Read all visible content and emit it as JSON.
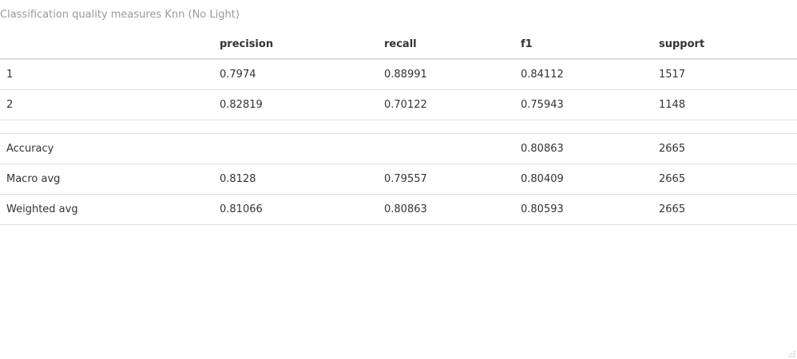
{
  "caption": "Classification quality measures Knn (No Light)",
  "table": {
    "columns": [
      "",
      "precision",
      "recall",
      "f1",
      "support"
    ],
    "rows": [
      [
        "1",
        "0.7974",
        "0.88991",
        "0.84112",
        "1517"
      ],
      [
        "2",
        "0.82819",
        "0.70122",
        "0.75943",
        "1148"
      ],
      [
        "",
        "",
        "",
        "",
        ""
      ],
      [
        "Accuracy",
        "",
        "",
        "0.80863",
        "2665"
      ],
      [
        "Macro avg",
        "0.8128",
        "0.79557",
        "0.80409",
        "2665"
      ],
      [
        "Weighted avg",
        "0.81066",
        "0.80863",
        "0.80593",
        "2665"
      ]
    ]
  },
  "icons": {
    "resize_grip": "resize-grip-icon"
  },
  "colors": {
    "caption_text": "#9a9a9a",
    "body_text": "#333333",
    "rule": "#dddddd",
    "background": "#ffffff"
  }
}
